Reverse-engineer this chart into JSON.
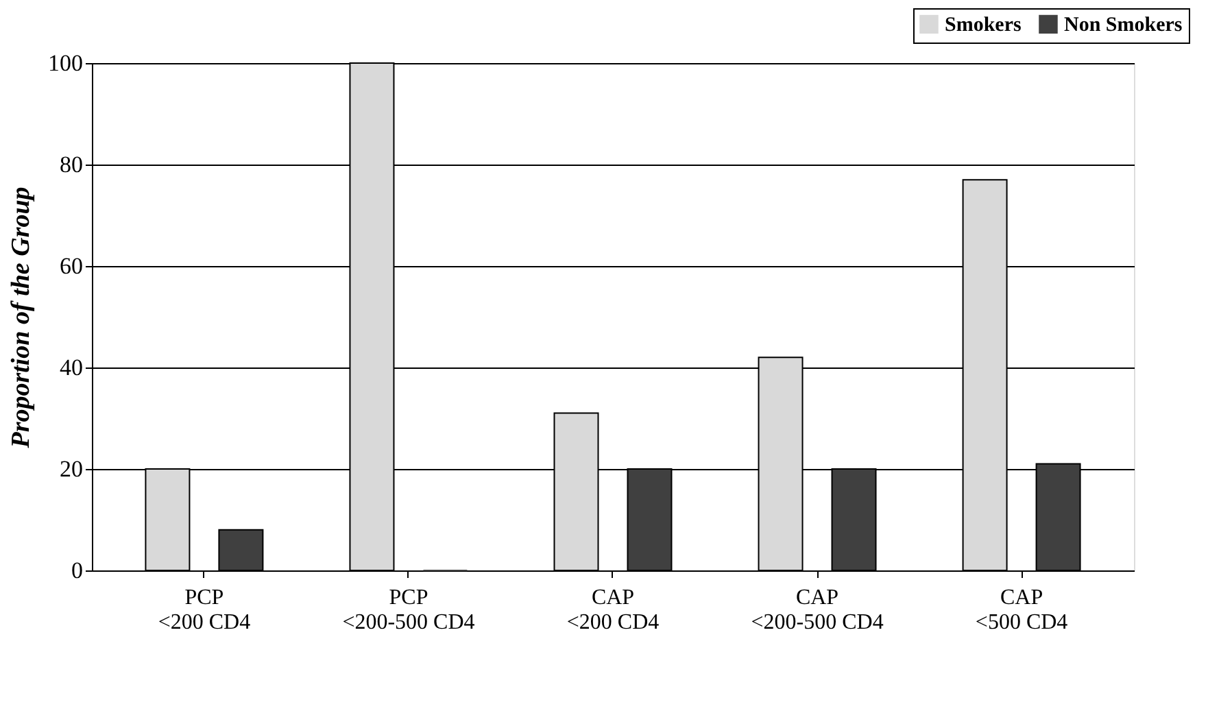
{
  "chart_data": {
    "type": "bar",
    "ylabel": "Proportion of the Group",
    "categories": [
      "PCP\n<200 CD4",
      "PCP\n<200-500 CD4",
      "CAP\n<200 CD4",
      "CAP\n<200-500 CD4",
      "CAP\n<500 CD4"
    ],
    "series": [
      {
        "name": "Smokers",
        "color": "#d9d9d9",
        "values": [
          20,
          100,
          31,
          42,
          77
        ]
      },
      {
        "name": "Non Smokers",
        "color": "#404040",
        "values": [
          8,
          0,
          20,
          20,
          21
        ]
      }
    ],
    "ylim": [
      0,
      100
    ],
    "yticks": [
      0,
      20,
      40,
      60,
      80,
      100
    ],
    "grid": "y",
    "legend": "top right"
  }
}
